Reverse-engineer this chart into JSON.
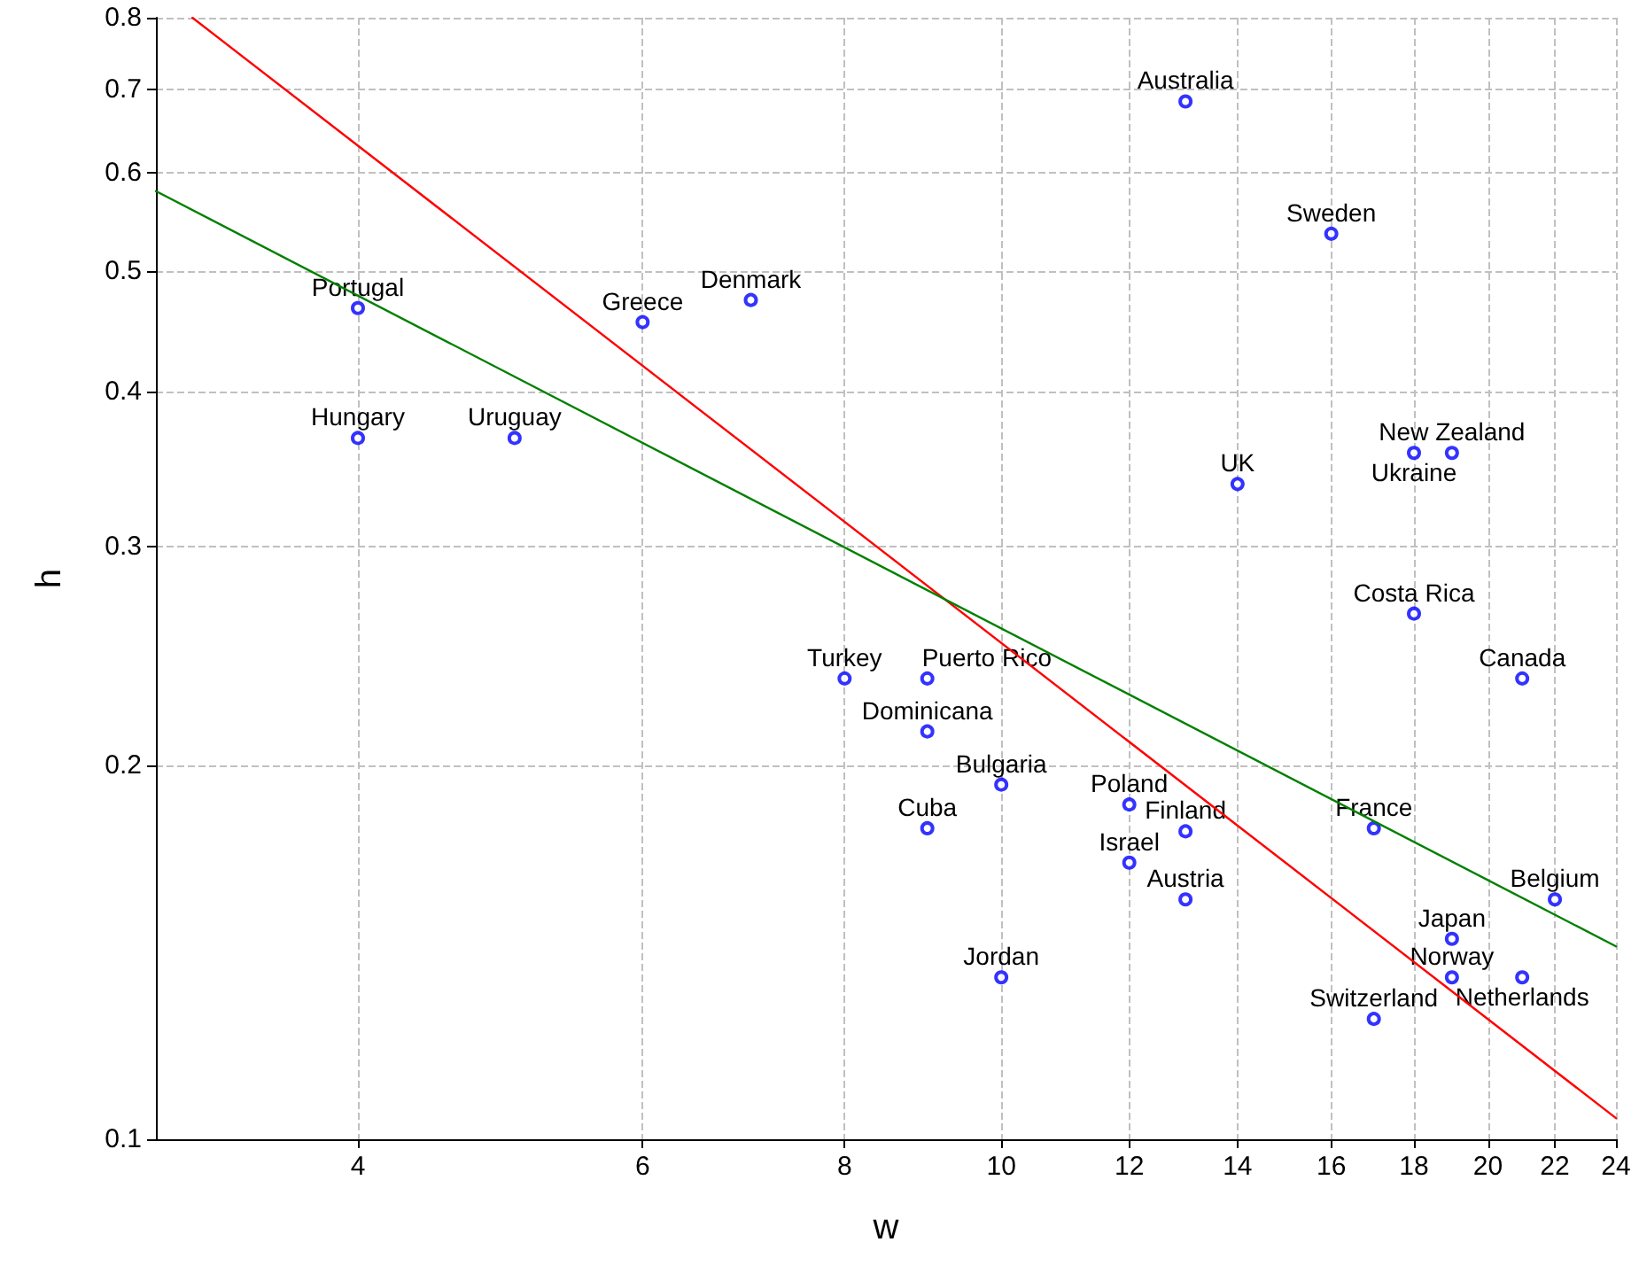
{
  "chart_data": {
    "type": "scatter",
    "xlabel": "w",
    "ylabel": "h",
    "log": "xy",
    "grid": true,
    "marker": "circle",
    "xlim": [
      3,
      24
    ],
    "xticks": [
      4,
      6,
      8,
      10,
      12,
      14,
      16,
      18,
      20,
      22,
      24
    ],
    "ylim": [
      0.1,
      0.8
    ],
    "yticks": [
      0.1,
      0.2,
      0.3,
      0.4,
      0.5,
      0.6,
      0.7,
      0.8
    ],
    "series": [
      {
        "color": "#0000ff",
        "x": [
          13,
          16,
          4,
          6,
          7,
          4,
          5,
          19,
          18,
          14,
          18,
          21,
          8,
          9,
          9,
          10,
          12,
          13,
          9,
          17,
          12,
          22,
          13,
          19,
          19,
          21,
          10,
          17
        ],
        "values": [
          0.685,
          0.536,
          0.467,
          0.455,
          0.474,
          0.367,
          0.367,
          0.357,
          0.357,
          0.337,
          0.265,
          0.235,
          0.235,
          0.235,
          0.213,
          0.193,
          0.186,
          0.177,
          0.178,
          0.178,
          0.167,
          0.156,
          0.156,
          0.145,
          0.135,
          0.135,
          0.135,
          0.125
        ]
      },
      {
        "type": "line",
        "color": "#ff0000",
        "marker": "none",
        "x": [
          3.16,
          24
        ],
        "values": [
          0.8,
          0.104
        ]
      },
      {
        "type": "line",
        "color": "#008000",
        "marker": "none",
        "x": [
          3,
          24
        ],
        "values": [
          0.58,
          0.143
        ]
      }
    ],
    "annotations": [
      {
        "text": "Australia",
        "x": 13,
        "y": 0.685
      },
      {
        "text": "Sweden",
        "x": 16,
        "y": 0.536
      },
      {
        "text": "Portugal",
        "x": 4,
        "y": 0.467
      },
      {
        "text": "Greece",
        "x": 6,
        "y": 0.455
      },
      {
        "text": "Denmark",
        "x": 7,
        "y": 0.474
      },
      {
        "text": "Hungary",
        "x": 4,
        "y": 0.367
      },
      {
        "text": "Uruguay",
        "x": 5,
        "y": 0.367
      },
      {
        "text": "New Zealand",
        "x": 19,
        "y": 0.357
      },
      {
        "text": "Ukraine",
        "x": 18,
        "y": 0.357
      },
      {
        "text": "UK",
        "x": 14,
        "y": 0.337
      },
      {
        "text": "Costa Rica",
        "x": 18,
        "y": 0.265
      },
      {
        "text": "Canada",
        "x": 21,
        "y": 0.235
      },
      {
        "text": "Turkey",
        "x": 8,
        "y": 0.235
      },
      {
        "text": "Puerto Rico",
        "x": 9,
        "y": 0.235
      },
      {
        "text": "Dominicana",
        "x": 9,
        "y": 0.213
      },
      {
        "text": "Bulgaria",
        "x": 10,
        "y": 0.193
      },
      {
        "text": "Poland",
        "x": 12,
        "y": 0.186
      },
      {
        "text": "Finland",
        "x": 13,
        "y": 0.177
      },
      {
        "text": "Cuba",
        "x": 9,
        "y": 0.178
      },
      {
        "text": "France",
        "x": 17,
        "y": 0.178
      },
      {
        "text": "Israel",
        "x": 12,
        "y": 0.167
      },
      {
        "text": "Belgium",
        "x": 22,
        "y": 0.156
      },
      {
        "text": "Austria",
        "x": 13,
        "y": 0.156
      },
      {
        "text": "Japan",
        "x": 19,
        "y": 0.145
      },
      {
        "text": "Norway",
        "x": 19,
        "y": 0.135
      },
      {
        "text": "Netherlands",
        "x": 21,
        "y": 0.135
      },
      {
        "text": "Jordan",
        "x": 10,
        "y": 0.135
      },
      {
        "text": "Switzerland",
        "x": 17,
        "y": 0.125
      }
    ]
  }
}
